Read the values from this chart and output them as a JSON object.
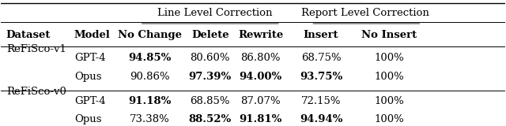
{
  "header_group": "Line Level Correction",
  "header_group2": "Report Level Correction",
  "col_headers": [
    "Dataset",
    "Model",
    "No Change",
    "Delete",
    "Rewrite",
    "Insert",
    "No Insert"
  ],
  "rows": [
    {
      "dataset": "ReFiSco-v1",
      "model": "GPT-4",
      "no_change": "94.85%",
      "delete": "80.60%",
      "rewrite": "86.80%",
      "insert": "68.75%",
      "no_insert": "100%",
      "bold": [
        "no_change"
      ]
    },
    {
      "dataset": "",
      "model": "Opus",
      "no_change": "90.86%",
      "delete": "97.39%",
      "rewrite": "94.00%",
      "insert": "93.75%",
      "no_insert": "100%",
      "bold": [
        "delete",
        "rewrite",
        "insert"
      ]
    },
    {
      "dataset": "ReFiSco-v0",
      "model": "GPT-4",
      "no_change": "91.18%",
      "delete": "68.85%",
      "rewrite": "87.07%",
      "insert": "72.15%",
      "no_insert": "100%",
      "bold": [
        "no_change"
      ]
    },
    {
      "dataset": "",
      "model": "Opus",
      "no_change": "73.38%",
      "delete": "88.52%",
      "rewrite": "91.81%",
      "insert": "94.94%",
      "no_insert": "100%",
      "bold": [
        "delete",
        "rewrite",
        "insert"
      ]
    }
  ],
  "background_color": "#ffffff",
  "font_size": 9.5,
  "header_font_size": 9.5
}
